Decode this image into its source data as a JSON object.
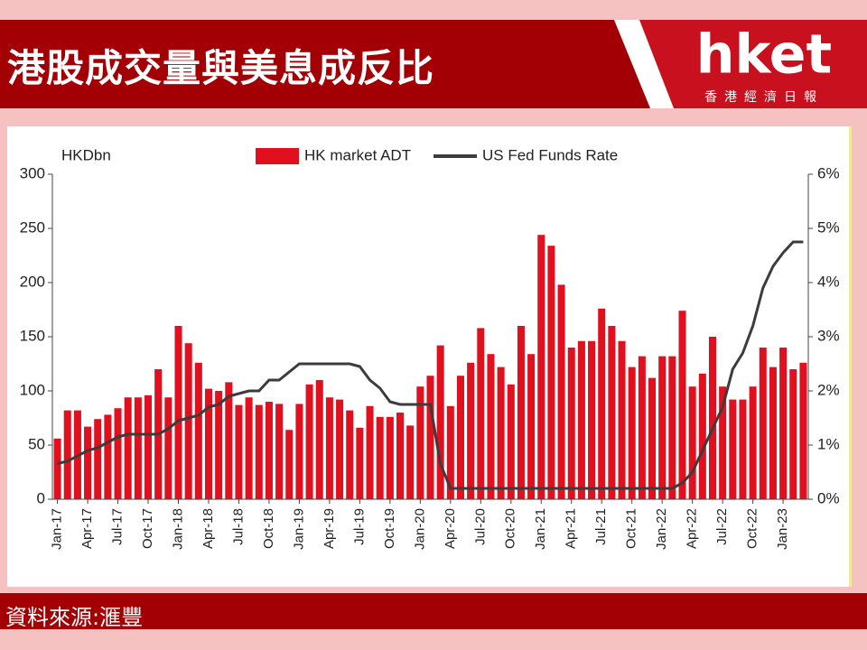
{
  "header": {
    "title": "港股成交量與美息成反比",
    "logo": "hket",
    "logo_subtitle": "香港經濟日報"
  },
  "footer": {
    "source": "資料來源:滙豐"
  },
  "chart_data": {
    "type": "bar",
    "y_label": "HKDbn",
    "categories": [
      "Jan-17",
      null,
      null,
      "Apr-17",
      null,
      null,
      "Jul-17",
      null,
      null,
      "Oct-17",
      null,
      null,
      "Jan-18",
      null,
      null,
      "Apr-18",
      null,
      null,
      "Jul-18",
      null,
      null,
      "Oct-18",
      null,
      null,
      "Jan-19",
      null,
      null,
      "Apr-19",
      null,
      null,
      "Jul-19",
      null,
      null,
      "Oct-19",
      null,
      null,
      "Jan-20",
      null,
      null,
      "Apr-20",
      null,
      null,
      "Jul-20",
      null,
      null,
      "Oct-20",
      null,
      null,
      "Jan-21",
      null,
      null,
      "Apr-21",
      null,
      null,
      "Jul-21",
      null,
      null,
      "Oct-21",
      null,
      null,
      "Jan-22",
      null,
      null,
      "Apr-22",
      null,
      null,
      "Jul-22",
      null,
      null,
      "Oct-22",
      null,
      null,
      "Jan-23",
      null,
      null
    ],
    "series": [
      {
        "name": "HK market ADT",
        "type": "bar",
        "color": "#e0101e",
        "values": [
          56,
          82,
          82,
          67,
          74,
          78,
          84,
          94,
          94,
          96,
          120,
          94,
          160,
          144,
          126,
          102,
          100,
          108,
          87,
          94,
          87,
          90,
          88,
          64,
          88,
          106,
          110,
          94,
          92,
          82,
          66,
          86,
          76,
          76,
          80,
          68,
          104,
          114,
          142,
          86,
          114,
          126,
          158,
          134,
          122,
          106,
          160,
          134,
          244,
          234,
          198,
          140,
          146,
          146,
          176,
          160,
          146,
          122,
          132,
          112,
          132,
          132,
          174,
          104,
          116,
          150,
          104,
          92,
          92,
          104,
          140,
          122,
          140,
          120,
          126
        ]
      },
      {
        "name": "US Fed Funds Rate",
        "type": "line",
        "axis": "y2",
        "color": "#3c3c3c",
        "values": [
          0.66,
          0.7,
          0.8,
          0.9,
          0.95,
          1.05,
          1.15,
          1.2,
          1.2,
          1.2,
          1.2,
          1.3,
          1.45,
          1.5,
          1.55,
          1.7,
          1.75,
          1.9,
          1.95,
          2.0,
          2.0,
          2.2,
          2.2,
          2.35,
          2.5,
          2.5,
          2.5,
          2.5,
          2.5,
          2.5,
          2.45,
          2.2,
          2.05,
          1.8,
          1.75,
          1.75,
          1.75,
          1.75,
          0.65,
          0.2,
          0.2,
          0.2,
          0.2,
          0.2,
          0.2,
          0.2,
          0.2,
          0.2,
          0.2,
          0.2,
          0.2,
          0.2,
          0.2,
          0.2,
          0.2,
          0.2,
          0.2,
          0.2,
          0.2,
          0.2,
          0.2,
          0.2,
          0.3,
          0.5,
          0.9,
          1.3,
          1.7,
          2.4,
          2.7,
          3.2,
          3.9,
          4.3,
          4.55,
          4.75,
          4.75
        ]
      }
    ],
    "ylim": [
      0,
      300
    ],
    "yticks": [
      0,
      50,
      100,
      150,
      200,
      250,
      300
    ],
    "y2lim": [
      0,
      6
    ],
    "y2ticks": [
      {
        "value": 0,
        "label": "0%"
      },
      {
        "value": 1,
        "label": "1%"
      },
      {
        "value": 2,
        "label": "2%"
      },
      {
        "value": 3,
        "label": "3%"
      },
      {
        "value": 4,
        "label": "4%"
      },
      {
        "value": 5,
        "label": "5%"
      },
      {
        "value": 6,
        "label": "6%"
      }
    ],
    "legend": "top"
  }
}
